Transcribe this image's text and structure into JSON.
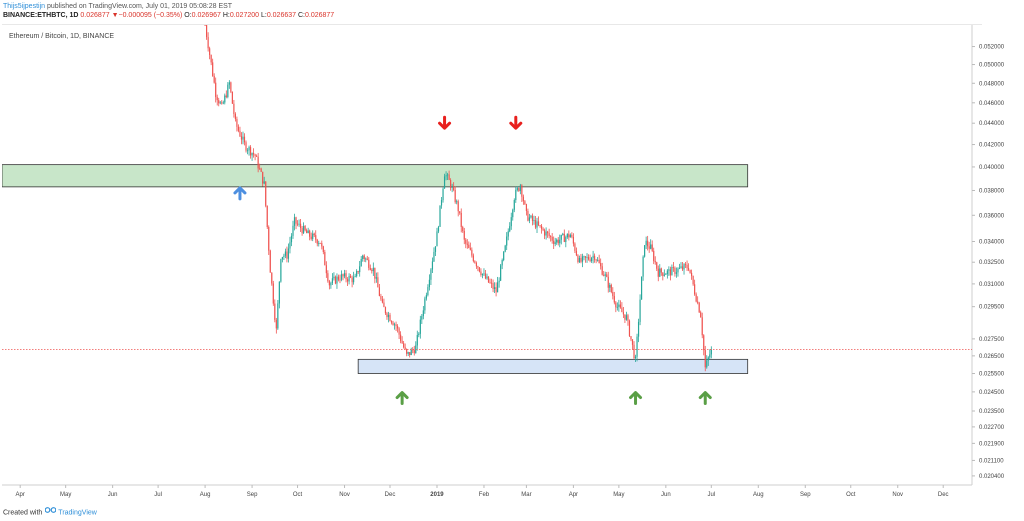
{
  "header": {
    "author": "Thijs5ijpestijn",
    "published_text": " published on TradingView.com, July 01, 2019 05:08:28 EST",
    "symbol": "BINANCE:ETHBTC, 1D",
    "last_price": "0.026877",
    "change": "−0.000095 (−0.35%)",
    "o_label": "O:",
    "o": "0.026967",
    "h_label": "H:",
    "h": "0.027200",
    "l_label": "L:",
    "l": "0.026637",
    "c_label": "C:",
    "c": "0.026877"
  },
  "footer": {
    "created_with": "Created with",
    "brand": "TradingView"
  },
  "colors": {
    "up": "#26a69a",
    "down": "#ef5350",
    "wick": "#555555",
    "resistance_zone": "#c8e6c9",
    "support_zone": "#d6e4f7",
    "red_arrow": "#e8201e",
    "green_arrow": "#5a9f46",
    "blue_arrow": "#4d8fe0",
    "price_line": "#ef5350"
  },
  "chart_data": {
    "type": "candlestick",
    "title": "Ethereum / Bitcoin, 1D, BINANCE",
    "x_tick_labels": [
      "Apr",
      "May",
      "Jun",
      "Jul",
      "Aug",
      "Sep",
      "Oct",
      "Nov",
      "Dec",
      "2019",
      "Feb",
      "Mar",
      "Apr",
      "May",
      "Jun",
      "Jul",
      "Aug",
      "Sep",
      "Oct",
      "Nov",
      "Dec"
    ],
    "y_tick_labels": [
      "0.052000",
      "0.050000",
      "0.048000",
      "0.046000",
      "0.044000",
      "0.042000",
      "0.040000",
      "0.038000",
      "0.036000",
      "0.034000",
      "0.032500",
      "0.031000",
      "0.029500",
      "0.027500",
      "0.026500",
      "0.025500",
      "0.024500",
      "0.023500",
      "0.022700",
      "0.021900",
      "0.021100",
      "0.020400"
    ],
    "y_scale": "log",
    "y_range": [
      0.02,
      0.0545
    ],
    "x_range": [
      "2018-03-20",
      "2019-12-20"
    ],
    "start_date": "2018-08-01",
    "trend_anchors": [
      {
        "date": "2018-08-01",
        "price": 0.0545
      },
      {
        "date": "2018-08-08",
        "price": 0.047
      },
      {
        "date": "2018-08-12",
        "price": 0.0455
      },
      {
        "date": "2018-08-17",
        "price": 0.048
      },
      {
        "date": "2018-08-21",
        "price": 0.044
      },
      {
        "date": "2018-08-27",
        "price": 0.042
      },
      {
        "date": "2018-09-03",
        "price": 0.041
      },
      {
        "date": "2018-09-09",
        "price": 0.0385
      },
      {
        "date": "2018-09-13",
        "price": 0.032
      },
      {
        "date": "2018-09-17",
        "price": 0.028
      },
      {
        "date": "2018-09-20",
        "price": 0.033
      },
      {
        "date": "2018-09-24",
        "price": 0.033
      },
      {
        "date": "2018-09-29",
        "price": 0.0355
      },
      {
        "date": "2018-10-08",
        "price": 0.0345
      },
      {
        "date": "2018-10-16",
        "price": 0.034
      },
      {
        "date": "2018-10-22",
        "price": 0.031
      },
      {
        "date": "2018-10-29",
        "price": 0.0315
      },
      {
        "date": "2018-11-08",
        "price": 0.0313
      },
      {
        "date": "2018-11-13",
        "price": 0.033
      },
      {
        "date": "2018-11-20",
        "price": 0.032
      },
      {
        "date": "2018-11-26",
        "price": 0.0295
      },
      {
        "date": "2018-12-05",
        "price": 0.0283
      },
      {
        "date": "2018-12-12",
        "price": 0.0265
      },
      {
        "date": "2018-12-18",
        "price": 0.027
      },
      {
        "date": "2018-12-25",
        "price": 0.0305
      },
      {
        "date": "2019-01-01",
        "price": 0.0345
      },
      {
        "date": "2019-01-06",
        "price": 0.0395
      },
      {
        "date": "2019-01-10",
        "price": 0.0385
      },
      {
        "date": "2019-01-15",
        "price": 0.0365
      },
      {
        "date": "2019-01-19",
        "price": 0.034
      },
      {
        "date": "2019-01-24",
        "price": 0.033
      },
      {
        "date": "2019-02-01",
        "price": 0.0315
      },
      {
        "date": "2019-02-09",
        "price": 0.0305
      },
      {
        "date": "2019-02-15",
        "price": 0.0335
      },
      {
        "date": "2019-02-21",
        "price": 0.0375
      },
      {
        "date": "2019-02-25",
        "price": 0.0385
      },
      {
        "date": "2019-03-01",
        "price": 0.036
      },
      {
        "date": "2019-03-10",
        "price": 0.035
      },
      {
        "date": "2019-03-20",
        "price": 0.034
      },
      {
        "date": "2019-03-30",
        "price": 0.0345
      },
      {
        "date": "2019-04-05",
        "price": 0.0325
      },
      {
        "date": "2019-04-15",
        "price": 0.033
      },
      {
        "date": "2019-04-22",
        "price": 0.0315
      },
      {
        "date": "2019-04-30",
        "price": 0.0295
      },
      {
        "date": "2019-05-06",
        "price": 0.0288
      },
      {
        "date": "2019-05-12",
        "price": 0.0262
      },
      {
        "date": "2019-05-15",
        "price": 0.03
      },
      {
        "date": "2019-05-18",
        "price": 0.034
      },
      {
        "date": "2019-05-22",
        "price": 0.0335
      },
      {
        "date": "2019-05-27",
        "price": 0.0318
      },
      {
        "date": "2019-06-03",
        "price": 0.0318
      },
      {
        "date": "2019-06-10",
        "price": 0.032
      },
      {
        "date": "2019-06-16",
        "price": 0.0322
      },
      {
        "date": "2019-06-20",
        "price": 0.0305
      },
      {
        "date": "2019-06-24",
        "price": 0.029
      },
      {
        "date": "2019-06-27",
        "price": 0.0258
      },
      {
        "date": "2019-06-30",
        "price": 0.0266
      },
      {
        "date": "2019-07-01",
        "price": 0.0269
      }
    ],
    "current_price": 0.026877,
    "zones": [
      {
        "name": "resistance",
        "from": "2018-03-20",
        "to": "2019-07-25",
        "low": 0.0383,
        "high": 0.0402
      },
      {
        "name": "support",
        "from": "2018-11-10",
        "to": "2019-07-25",
        "low": 0.0255,
        "high": 0.0263
      }
    ],
    "markers": [
      {
        "type": "red-down-arrow",
        "date": "2019-01-06",
        "price": 0.044
      },
      {
        "type": "red-down-arrow",
        "date": "2019-02-22",
        "price": 0.044
      },
      {
        "type": "blue-up-arrow",
        "date": "2018-08-24",
        "price": 0.0378
      },
      {
        "type": "green-up-arrow",
        "date": "2018-12-09",
        "price": 0.0242
      },
      {
        "type": "green-up-arrow",
        "date": "2019-05-12",
        "price": 0.0242
      },
      {
        "type": "green-up-arrow",
        "date": "2019-06-27",
        "price": 0.0242
      }
    ]
  }
}
